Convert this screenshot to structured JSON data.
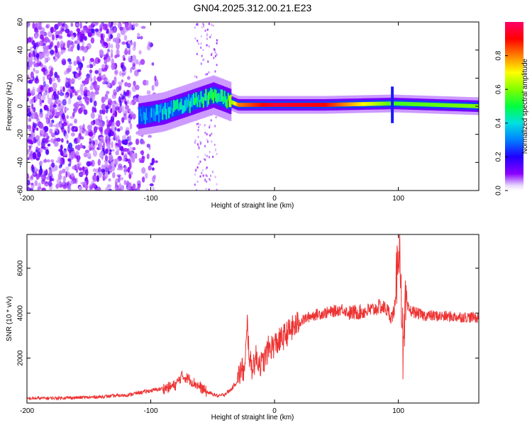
{
  "title": "GN04.2025.312.00.21.E23",
  "colors": {
    "snr_line": "#ee3333",
    "axis": "#000000",
    "tick": "#000000"
  },
  "chart_data": [
    {
      "type": "heatmap",
      "name": "spectrogram",
      "xlabel": "Height of straight line (km)",
      "ylabel": "Frequency (Hz)",
      "xlim": [
        -200,
        165
      ],
      "ylim": [
        -60,
        60
      ],
      "x_ticks": [
        -200,
        -100,
        0,
        100
      ],
      "y_ticks": [
        -60,
        -40,
        -20,
        0,
        20,
        40,
        60
      ],
      "colorbar": {
        "label": "Normalized spectral amplitude",
        "range": [
          0,
          1
        ],
        "ticks": [
          "0.0",
          "0.2",
          "0.4",
          "0.6",
          "0.8"
        ],
        "tick_values": [
          0.0,
          0.2,
          0.4,
          0.6,
          0.8
        ]
      },
      "noise_region_km": [
        -200,
        -95
      ],
      "sparse_noise_band_km": [
        -65,
        -47
      ],
      "signal_track": {
        "description_points": [
          {
            "x": -110,
            "y": -7,
            "amp": 0.25
          },
          {
            "x": -90,
            "y": -4,
            "amp": 0.35
          },
          {
            "x": -70,
            "y": 2,
            "amp": 0.4
          },
          {
            "x": -50,
            "y": 8,
            "amp": 0.45
          },
          {
            "x": -38,
            "y": 4,
            "amp": 0.5
          },
          {
            "x": -30,
            "y": 1,
            "amp": 0.8
          },
          {
            "x": 0,
            "y": 1,
            "amp": 0.95
          },
          {
            "x": 40,
            "y": 1,
            "amp": 0.9
          },
          {
            "x": 95,
            "y": 2,
            "amp": 0.55
          },
          {
            "x": 165,
            "y": 0,
            "amp": 0.6
          }
        ]
      }
    },
    {
      "type": "line",
      "name": "snr",
      "xlabel": "Height of straight line (km)",
      "ylabel": "SNR (10 * v/v)",
      "xlim": [
        -200,
        165
      ],
      "ylim": [
        0,
        7500
      ],
      "x_ticks": [
        -200,
        -100,
        0,
        100
      ],
      "y_ticks": [
        2000,
        4000,
        6000
      ],
      "series": [
        {
          "name": "SNR",
          "x": [
            -200,
            -150,
            -120,
            -105,
            -95,
            -85,
            -80,
            -75,
            -70,
            -65,
            -60,
            -55,
            -50,
            -45,
            -40,
            -35,
            -30,
            -27,
            -24,
            -22,
            -20,
            -18,
            -15,
            -10,
            -5,
            0,
            5,
            10,
            20,
            30,
            40,
            50,
            55,
            60,
            70,
            80,
            85,
            90,
            95,
            98,
            100,
            102,
            104,
            106,
            110,
            120,
            140,
            165
          ],
          "y": [
            200,
            250,
            350,
            500,
            600,
            700,
            800,
            1200,
            1100,
            900,
            700,
            500,
            400,
            300,
            400,
            600,
            1000,
            1500,
            1400,
            3500,
            1800,
            1600,
            2000,
            1700,
            2400,
            2600,
            2800,
            3100,
            3600,
            3900,
            4000,
            4100,
            4200,
            4000,
            4050,
            4150,
            4300,
            4200,
            3800,
            4500,
            7400,
            6000,
            1800,
            4300,
            4100,
            3900,
            3850,
            3800
          ]
        }
      ]
    }
  ]
}
